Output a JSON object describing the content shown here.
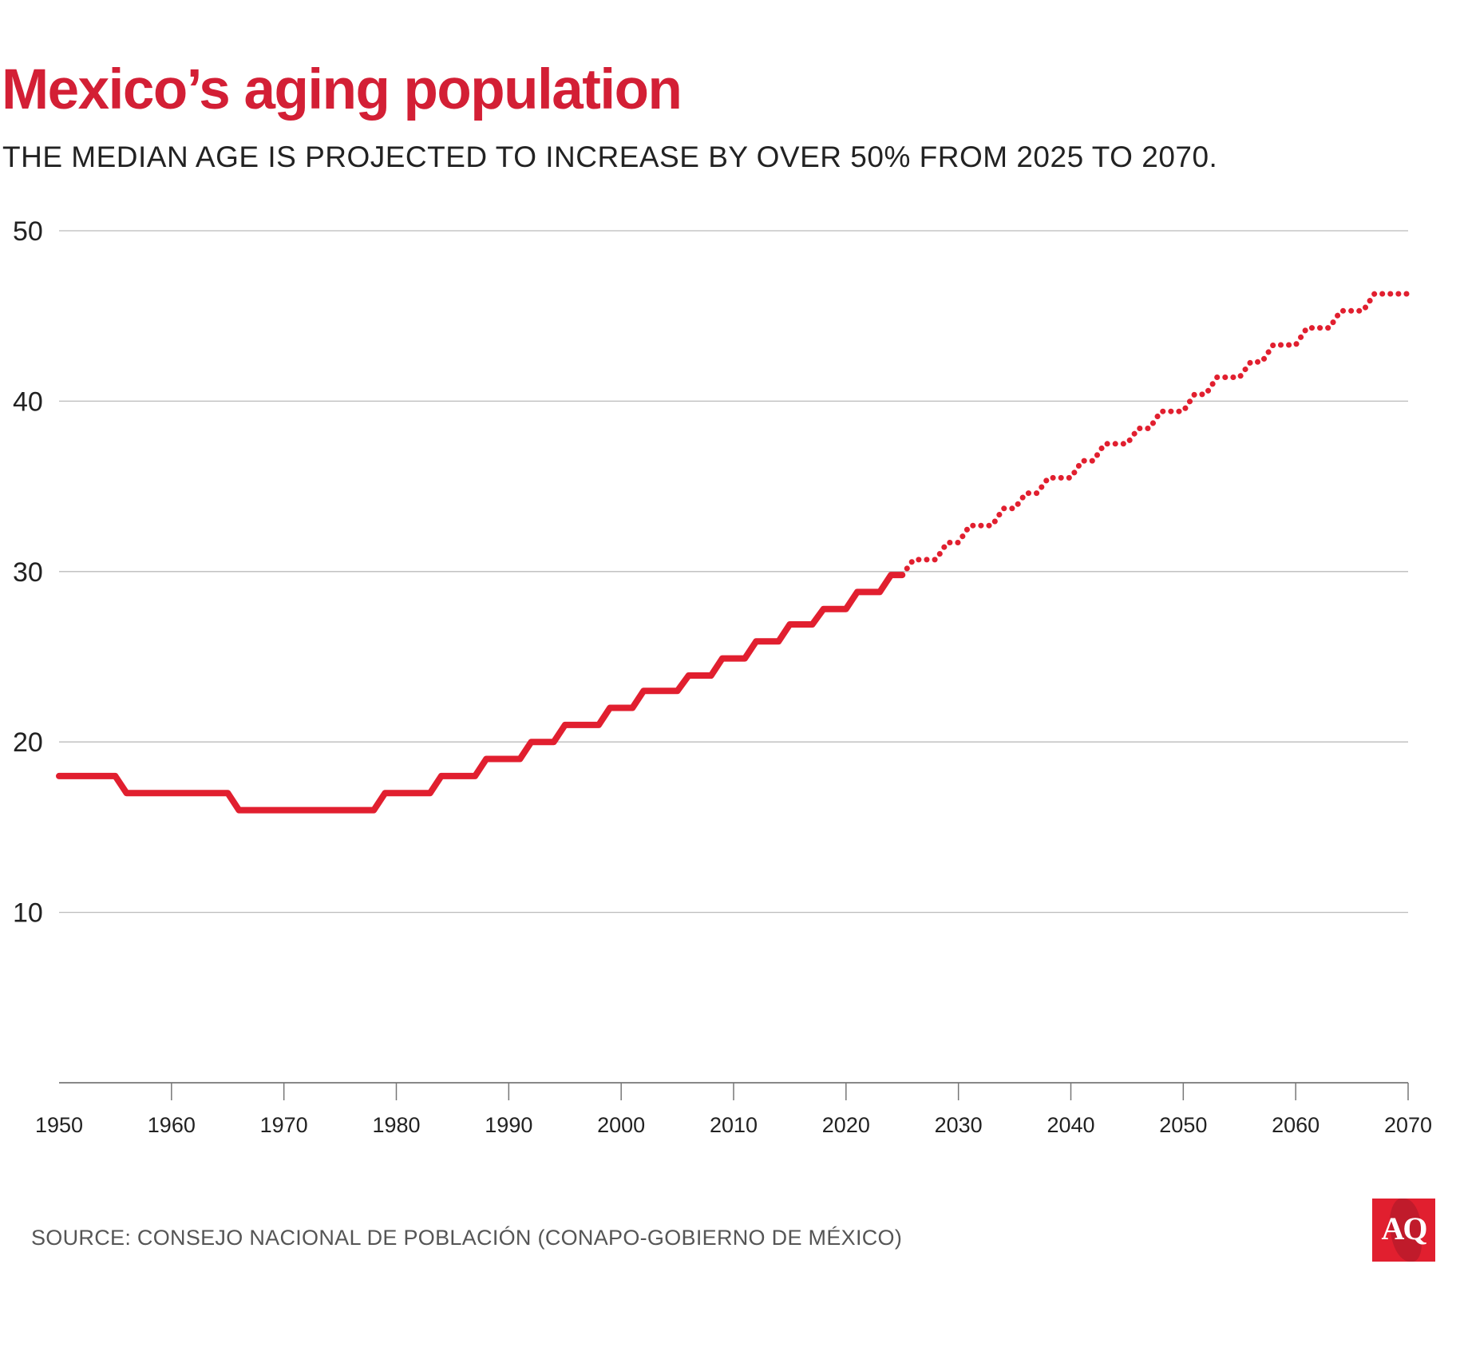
{
  "title": "Mexico’s aging population",
  "subtitle": "THE MEDIAN AGE IS PROJECTED TO INCREASE BY OVER 50% FROM 2025 TO 2070.",
  "source": "SOURCE: CONSEJO NACIONAL DE POBLACIÓN (CONAPO-GOBIERNO DE MÉXICO)",
  "logo": "AQ",
  "colors": {
    "accent": "#d31f35",
    "line": "#e11f2f",
    "grid": "#bbbbbb"
  },
  "chart_data": {
    "type": "line",
    "title": "Mexico’s aging population",
    "xlabel": "",
    "ylabel": "",
    "xlim": [
      1950,
      2070
    ],
    "ylim": [
      0,
      50
    ],
    "x_ticks": [
      "1950",
      "1960",
      "1970",
      "1980",
      "1990",
      "2000",
      "2010",
      "2020",
      "2030",
      "2040",
      "2050",
      "2060",
      "2070"
    ],
    "y_ticks": [
      "10",
      "20",
      "30",
      "40",
      "50"
    ],
    "grid": "horizontal",
    "series": [
      {
        "style": "solid",
        "points": [
          [
            1950,
            18
          ],
          [
            1955,
            18
          ],
          [
            1956,
            17
          ],
          [
            1965,
            17
          ],
          [
            1966,
            16
          ],
          [
            1978,
            16
          ],
          [
            1979,
            17
          ],
          [
            1983,
            17
          ],
          [
            1984,
            18
          ],
          [
            1987,
            18
          ],
          [
            1988,
            19
          ],
          [
            1991,
            19
          ],
          [
            1992,
            20
          ],
          [
            1994,
            20
          ],
          [
            1995,
            21
          ],
          [
            1998,
            21
          ],
          [
            1999,
            22
          ],
          [
            2001,
            22
          ],
          [
            2002,
            23
          ],
          [
            2005,
            23
          ],
          [
            2006,
            23.9
          ],
          [
            2008,
            23.9
          ],
          [
            2009,
            24.9
          ],
          [
            2011,
            24.9
          ],
          [
            2012,
            25.9
          ],
          [
            2014,
            25.9
          ],
          [
            2015,
            26.9
          ],
          [
            2017,
            26.9
          ],
          [
            2018,
            27.8
          ],
          [
            2020,
            27.8
          ],
          [
            2021,
            28.8
          ],
          [
            2023,
            28.8
          ],
          [
            2024,
            29.8
          ],
          [
            2025,
            29.8
          ]
        ]
      },
      {
        "style": "dotted",
        "points": [
          [
            2025,
            29.8
          ],
          [
            2026,
            30.7
          ],
          [
            2028,
            30.7
          ],
          [
            2029,
            31.7
          ],
          [
            2030,
            31.7
          ],
          [
            2031,
            32.7
          ],
          [
            2033,
            32.7
          ],
          [
            2034,
            33.7
          ],
          [
            2035,
            33.7
          ],
          [
            2036,
            34.6
          ],
          [
            2037,
            34.6
          ],
          [
            2038,
            35.5
          ],
          [
            2040,
            35.5
          ],
          [
            2041,
            36.5
          ],
          [
            2042,
            36.5
          ],
          [
            2043,
            37.5
          ],
          [
            2045,
            37.5
          ],
          [
            2046,
            38.4
          ],
          [
            2047,
            38.4
          ],
          [
            2048,
            39.4
          ],
          [
            2050,
            39.4
          ],
          [
            2051,
            40.4
          ],
          [
            2052,
            40.4
          ],
          [
            2053,
            41.4
          ],
          [
            2055,
            41.4
          ],
          [
            2056,
            42.3
          ],
          [
            2057,
            42.3
          ],
          [
            2058,
            43.3
          ],
          [
            2060,
            43.3
          ],
          [
            2061,
            44.3
          ],
          [
            2063,
            44.3
          ],
          [
            2064,
            45.3
          ],
          [
            2066,
            45.3
          ],
          [
            2067,
            46.3
          ],
          [
            2070,
            46.3
          ]
        ]
      }
    ]
  }
}
